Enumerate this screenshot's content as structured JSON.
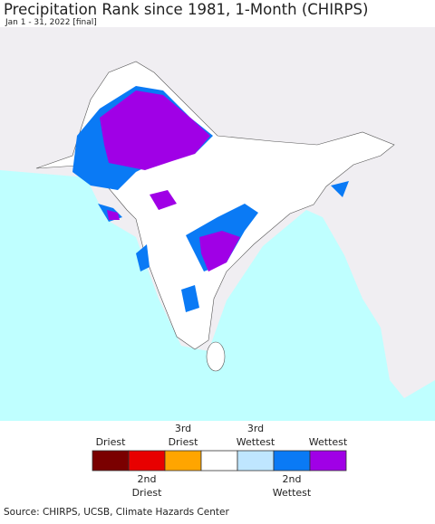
{
  "header": {
    "title": "Precipitation Rank since 1981, 1-Month (CHIRPS)",
    "subtitle": "Jan 1 - 31, 2022 [final]"
  },
  "legend": {
    "items": [
      {
        "color": "#7a0000"
      },
      {
        "color": "#e80000"
      },
      {
        "color": "#ffa500"
      },
      {
        "color": "#ffffff"
      },
      {
        "color": "#bfe6ff"
      },
      {
        "color": "#0a7af5"
      },
      {
        "color": "#a000e6"
      }
    ],
    "top_labels": [
      [
        "Driest"
      ],
      [
        "3rd",
        "Driest"
      ],
      [
        "3rd",
        "Wettest"
      ],
      [
        "Wettest"
      ]
    ],
    "bottom_labels": [
      [
        "2nd",
        "Driest"
      ],
      [
        "2nd",
        "Wettest"
      ]
    ]
  },
  "footer": {
    "source": "Source: CHIRPS, UCSB, Climate Hazards Center"
  }
}
